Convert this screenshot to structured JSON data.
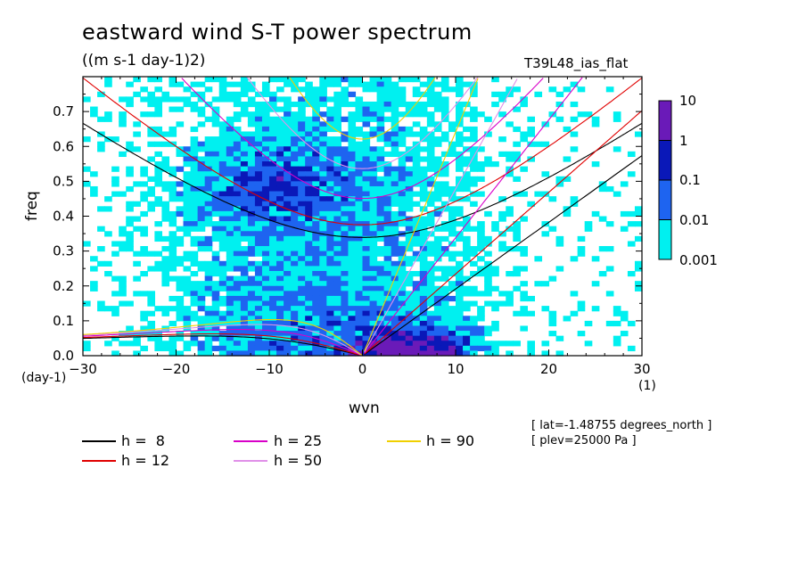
{
  "chart_data": {
    "type": "heatmap",
    "title": "eastward wind S-T power spectrum",
    "units": "((m s-1 day-1)2)",
    "experiment": "T39L48_ias_flat",
    "xlabel": "wvn",
    "ylabel": "freq",
    "xunit": "(1)",
    "yunit": "(day-1)",
    "xlim": [
      -30,
      30
    ],
    "ylim": [
      0,
      0.8
    ],
    "x_ticks": [
      -30,
      -20,
      -10,
      0,
      10,
      20,
      30
    ],
    "x_tick_labels": [
      "−30",
      "−20",
      "−10",
      "0",
      "10",
      "20",
      "30"
    ],
    "y_ticks": [
      0,
      0.1,
      0.2,
      0.3,
      0.4,
      0.5,
      0.6,
      0.7
    ],
    "y_tick_labels": [
      "0.0",
      "0.1",
      "0.2",
      "0.3",
      "0.4",
      "0.5",
      "0.6",
      "0.7"
    ],
    "colorbar": {
      "levels": [
        "10",
        "1",
        "0.1",
        "0.01",
        "0.001"
      ],
      "colors": [
        "#6a1ab8",
        "#0a18b8",
        "#1e64f0",
        "#00f0f0"
      ]
    },
    "dispersion_curves": [
      {
        "label": "h =  8",
        "h": 8,
        "color": "#000000"
      },
      {
        "label": "h = 12",
        "h": 12,
        "color": "#e00000"
      },
      {
        "label": "h = 25",
        "h": 25,
        "color": "#d800c8"
      },
      {
        "label": "h = 50",
        "h": 50,
        "color": "#e090e8"
      },
      {
        "label": "h = 90",
        "h": 90,
        "color": "#f0d000"
      }
    ],
    "metadata": [
      "[ lat=-1.48755 degrees_north ]",
      "[ plev=25000 Pa ]"
    ]
  }
}
